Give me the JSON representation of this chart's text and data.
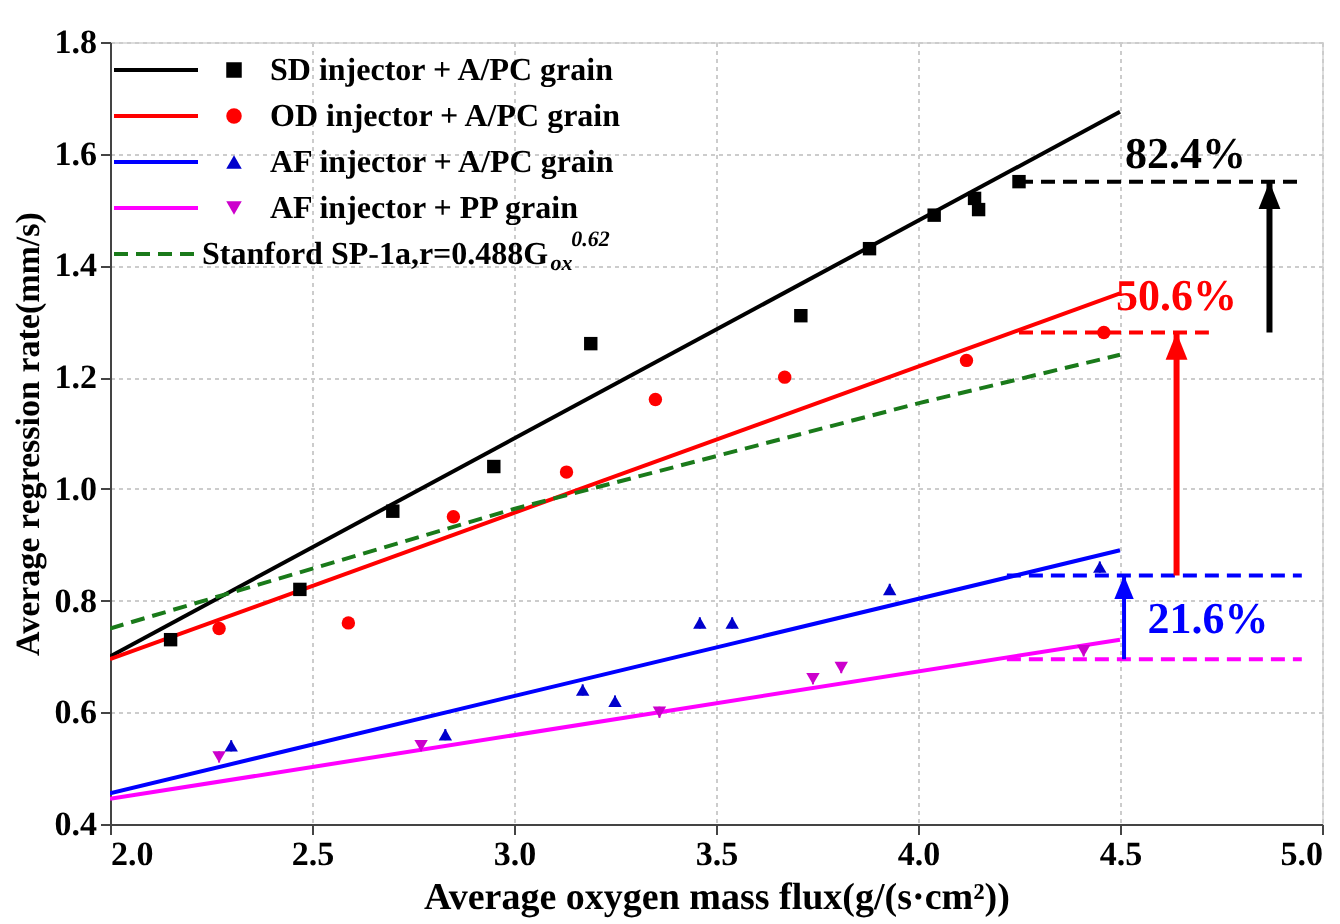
{
  "chart_data": {
    "type": "scatter",
    "xlabel": "Average oxygen mass flux(g/(s·cm²))",
    "ylabel": "Average regression rate(mm/s)",
    "xlim": [
      2.0,
      5.0
    ],
    "xticks": [
      {
        "value": 2,
        "label": "2.0"
      },
      2.5,
      {
        "value": 3,
        "label": "3.0"
      },
      3.5,
      {
        "value": 4,
        "label": "4.0"
      },
      4.5,
      {
        "value": 5,
        "label": "5.0"
      }
    ],
    "ylim": [
      0.4,
      1.8
    ],
    "yticks": [
      0.4,
      0.6,
      0.8,
      {
        "value": 1,
        "label": "1.0"
      },
      1.2,
      1.4,
      1.6,
      1.8
    ],
    "grid": true,
    "legend": "top left",
    "series": [
      {
        "name": "SD injector + A/PC grain",
        "marker": "square",
        "color": "#000000",
        "x": [
          2.15,
          2.47,
          2.7,
          2.95,
          3.19,
          3.71,
          3.88,
          4.04,
          4.14,
          4.15,
          4.25
        ],
        "values": [
          0.73,
          0.82,
          0.96,
          1.04,
          1.26,
          1.31,
          1.43,
          1.49,
          1.52,
          1.5,
          1.55
        ],
        "errors": [
          0.01,
          0.01,
          0.01,
          0.01,
          0.01,
          0.01,
          0.01,
          0.01,
          0.01,
          0.01,
          0.01
        ]
      },
      {
        "type": "line",
        "color": "#000000",
        "line_style": "solid",
        "x": [
          2.0,
          4.5
        ],
        "values": [
          0.7,
          1.675
        ]
      },
      {
        "name": "OD injector + A/PC grain",
        "marker": "circle",
        "color": "#ff0000",
        "x": [
          2.27,
          2.59,
          2.85,
          3.13,
          3.35,
          3.67,
          4.12,
          4.46
        ],
        "values": [
          0.75,
          0.76,
          0.95,
          1.03,
          1.16,
          1.2,
          1.23,
          1.28
        ],
        "errors": [
          0.01,
          0.01,
          0.01,
          0.01,
          0.01,
          0.01,
          0.01,
          0.01
        ]
      },
      {
        "type": "line",
        "color": "#ff0000",
        "line_style": "solid",
        "x": [
          2.0,
          4.5
        ],
        "values": [
          0.695,
          1.35
        ]
      },
      {
        "name": "AF injector + A/PC grain",
        "marker": "triangle",
        "color": "#0000cc",
        "x": [
          2.3,
          2.83,
          3.17,
          3.25,
          3.46,
          3.54,
          3.93,
          4.45
        ],
        "values": [
          0.54,
          0.56,
          0.64,
          0.62,
          0.76,
          0.76,
          0.82,
          0.86
        ],
        "errors": [
          0.01,
          0.01,
          0.01,
          0.01,
          0.01,
          0.01,
          0.01,
          0.01
        ]
      },
      {
        "type": "line",
        "color": "#0000ff",
        "line_style": "solid",
        "x": [
          2.0,
          4.5
        ],
        "values": [
          0.455,
          0.89
        ]
      },
      {
        "name": "AF injector + PP grain",
        "marker": "triangle-down",
        "color": "#cc00cc",
        "x": [
          2.27,
          2.77,
          3.36,
          3.74,
          3.81,
          4.41
        ],
        "values": [
          0.52,
          0.54,
          0.6,
          0.66,
          0.68,
          0.71
        ],
        "errors": [
          0.01,
          0.01,
          0.01,
          0.01,
          0.01,
          0.01
        ]
      },
      {
        "type": "line",
        "color": "#ff00ff",
        "line_style": "solid",
        "x": [
          2.0,
          4.5
        ],
        "values": [
          0.445,
          0.73
        ]
      },
      {
        "name": "Stanford SP-1a,r=0.488G$_{ox}$$^{0.62}$",
        "type": "line",
        "line_style": "dashed",
        "color": "#1a7a1a",
        "x": [
          2.0,
          3.0,
          4.0,
          4.5
        ],
        "values": [
          0.75,
          0.964,
          1.153,
          1.24
        ]
      },
      {
        "type": "line",
        "line_style": "dashed",
        "color": "#000000",
        "x": [
          4.25,
          4.95
        ],
        "values": [
          1.55,
          1.55
        ]
      },
      {
        "type": "line",
        "line_style": "dashed",
        "color": "#ff0000",
        "x": [
          4.25,
          4.72
        ],
        "values": [
          1.28,
          1.28
        ]
      },
      {
        "type": "line",
        "line_style": "dashed",
        "color": "#0000ff",
        "x": [
          4.22,
          4.95
        ],
        "values": [
          0.845,
          0.845
        ]
      },
      {
        "type": "line",
        "line_style": "dashed",
        "color": "#ff00ff",
        "x": [
          4.22,
          4.95
        ],
        "values": [
          0.695,
          0.695
        ]
      }
    ],
    "annotations": [
      {
        "text": "82.4%",
        "x": 4.87,
        "y": 1.55
      },
      {
        "text": "50.6%",
        "x": 4.64,
        "y": 1.28
      },
      {
        "text": "21.6%",
        "x": 4.51,
        "y": 0.845
      }
    ]
  }
}
